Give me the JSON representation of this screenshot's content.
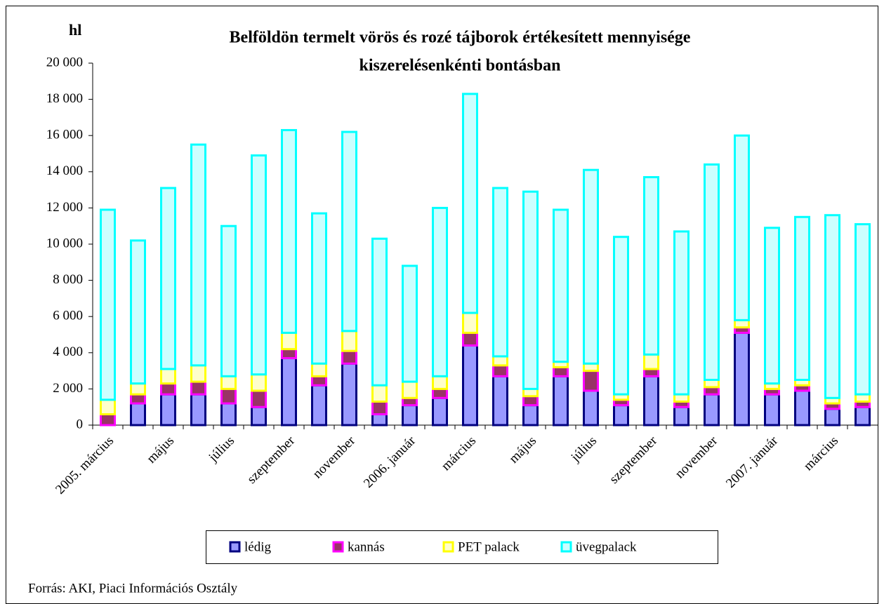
{
  "chart_data": {
    "type": "stacked_bar",
    "title": [
      "Belföldön termelt vörös és rozé tájborok értékesített mennyisége",
      "kiszerelésenkénti bontásban"
    ],
    "y_label": "hl",
    "source": "Forrás: AKI, Piaci Információs Osztály",
    "categories": [
      "2005. március",
      null,
      "május",
      null,
      "július",
      null,
      "szeptember",
      null,
      "november",
      null,
      "2006. január",
      null,
      "március",
      null,
      "május",
      null,
      "július",
      null,
      "szeptember",
      null,
      "november",
      null,
      "2007. január",
      null,
      "március",
      null
    ],
    "series": [
      {
        "name": "lédig",
        "color": "#9999ff",
        "border_color": "#000080",
        "values": [
          0,
          1200,
          1700,
          1700,
          1200,
          1000,
          3700,
          2200,
          3400,
          600,
          1100,
          1500,
          4400,
          2700,
          1100,
          2700,
          1900,
          1100,
          2700,
          1000,
          1700,
          5100,
          1700,
          1900,
          900,
          1000
        ]
      },
      {
        "name": "kannás",
        "color": "#993366",
        "border_color": "#ff00ff",
        "values": [
          600,
          500,
          600,
          700,
          800,
          900,
          500,
          500,
          700,
          700,
          400,
          500,
          700,
          600,
          500,
          500,
          1100,
          300,
          400,
          300,
          400,
          300,
          300,
          300,
          300,
          300
        ]
      },
      {
        "name": "PET palack",
        "color": "#ffffcc",
        "border_color": "#ffff00",
        "values": [
          800,
          600,
          800,
          900,
          700,
          900,
          900,
          700,
          1100,
          900,
          900,
          700,
          1100,
          500,
          400,
          300,
          400,
          300,
          800,
          400,
          400,
          400,
          300,
          300,
          300,
          400
        ]
      },
      {
        "name": "üvegpalack",
        "color": "#ccffff",
        "border_color": "#00ffff",
        "values": [
          10500,
          7900,
          10000,
          12200,
          8300,
          12100,
          11200,
          8300,
          11000,
          8100,
          6400,
          9300,
          12100,
          9300,
          10900,
          8400,
          10700,
          8700,
          9800,
          9000,
          11900,
          10200,
          8600,
          9000,
          10100,
          9400
        ]
      }
    ],
    "ylim": [
      0,
      20000
    ],
    "yticks": [
      0,
      {
        "value": 2000,
        "label": "2 000"
      },
      {
        "value": 4000,
        "label": "4 000"
      },
      {
        "value": 6000,
        "label": "6 000"
      },
      {
        "value": 8000,
        "label": "8 000"
      },
      {
        "value": 10000,
        "label": "10 000"
      },
      {
        "value": 12000,
        "label": "12 000"
      },
      {
        "value": 14000,
        "label": "14 000"
      },
      {
        "value": 16000,
        "label": "16 000"
      },
      {
        "value": 18000,
        "label": "18 000"
      },
      {
        "value": 20000,
        "label": "20 000"
      }
    ],
    "grid": false
  }
}
